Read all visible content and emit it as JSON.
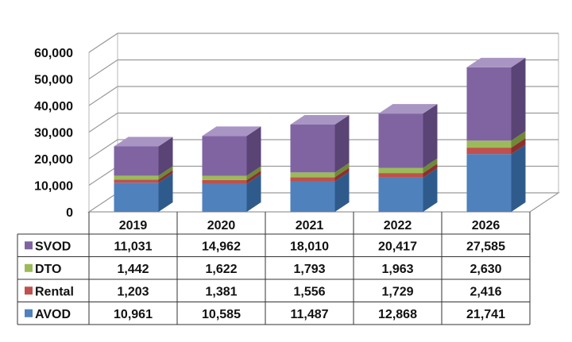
{
  "chart_data": {
    "type": "bar",
    "stacked": true,
    "style": "3d",
    "categories": [
      "2019",
      "2020",
      "2021",
      "2022",
      "2026"
    ],
    "series": [
      {
        "name": "AVOD",
        "values": [
          10961,
          10585,
          11487,
          12868,
          21741
        ]
      },
      {
        "name": "Rental",
        "values": [
          1203,
          1381,
          1556,
          1729,
          2416
        ]
      },
      {
        "name": "DTO",
        "values": [
          1442,
          1622,
          1793,
          1963,
          2630
        ]
      },
      {
        "name": "SVOD",
        "values": [
          11031,
          14962,
          18010,
          20417,
          27585
        ]
      }
    ],
    "table_rows": [
      {
        "name": "SVOD",
        "cells": [
          "11,031",
          "14,962",
          "18,010",
          "20,417",
          "27,585"
        ]
      },
      {
        "name": "DTO",
        "cells": [
          "1,442",
          "1,622",
          "1,793",
          "1,963",
          "2,630"
        ]
      },
      {
        "name": "Rental",
        "cells": [
          "1,203",
          "1,381",
          "1,556",
          "1,729",
          "2,416"
        ]
      },
      {
        "name": "AVOD",
        "cells": [
          "10,961",
          "10,585",
          "11,487",
          "12,868",
          "21,741"
        ]
      }
    ],
    "y_ticks": [
      "0",
      "10,000",
      "20,000",
      "30,000",
      "40,000",
      "50,000",
      "60,000"
    ],
    "ylim": [
      0,
      60000
    ],
    "title": "",
    "xlabel": "",
    "ylabel": "",
    "grid": true,
    "legend": "data-table",
    "colors": {
      "AVOD": {
        "front": "#4f81bd",
        "side": "#2f5b8c",
        "top": "#8eaedb"
      },
      "Rental": {
        "front": "#c0504d",
        "side": "#8c302e",
        "top": "#dc8c8a"
      },
      "DTO": {
        "front": "#9bbb59",
        "side": "#6e8a36",
        "top": "#c3d88e"
      },
      "SVOD": {
        "front": "#8064a2",
        "side": "#5a4375",
        "top": "#a995c3"
      }
    }
  }
}
